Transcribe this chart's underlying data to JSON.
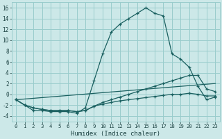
{
  "background_color": "#cce8e8",
  "grid_color": "#99cccc",
  "line_color": "#1a6060",
  "xlabel": "Humidex (Indice chaleur)",
  "xlim": [
    -0.5,
    23.5
  ],
  "ylim": [
    -5,
    17
  ],
  "yticks": [
    -4,
    -2,
    0,
    2,
    4,
    6,
    8,
    10,
    12,
    14,
    16
  ],
  "xticks": [
    0,
    1,
    2,
    3,
    4,
    5,
    6,
    7,
    8,
    9,
    10,
    11,
    12,
    13,
    14,
    15,
    16,
    17,
    18,
    19,
    20,
    21,
    22,
    23
  ],
  "curve1_y": [
    -1.0,
    -2.0,
    -3.0,
    -3.0,
    -3.2,
    -3.2,
    -3.2,
    -3.5,
    -2.5,
    2.5,
    7.5,
    11.5,
    13.0,
    14.0,
    15.0,
    16.0,
    15.0,
    14.5,
    7.5,
    6.5,
    5.0,
    1.5,
    -1.0,
    -0.5
  ],
  "curve2_y": [
    -1.0,
    -2.0,
    -2.5,
    -2.8,
    -3.0,
    -3.0,
    -3.0,
    -3.2,
    -3.0,
    -2.2,
    -1.5,
    -1.0,
    -0.5,
    0.0,
    0.5,
    1.0,
    1.5,
    2.0,
    2.5,
    3.0,
    3.5,
    3.5,
    1.0,
    0.5
  ],
  "curve3_y": [
    -1.0,
    -2.0,
    -2.5,
    -2.8,
    -3.0,
    -3.0,
    -3.0,
    -3.2,
    -3.0,
    -2.2,
    -1.8,
    -1.5,
    -1.2,
    -1.0,
    -0.8,
    -0.6,
    -0.4,
    -0.2,
    0.0,
    0.0,
    0.2,
    0.0,
    -0.3,
    -0.3
  ],
  "curve4_x": [
    0,
    23
  ],
  "curve4_y": [
    -1.0,
    2.0
  ]
}
